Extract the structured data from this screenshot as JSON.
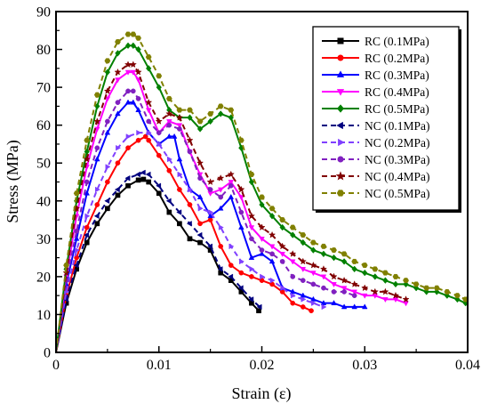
{
  "chart_data": {
    "type": "line",
    "xlabel": "Strain (ε)",
    "ylabel": "Stress (MPa)",
    "xlim": [
      0,
      0.04
    ],
    "ylim": [
      0,
      90
    ],
    "xticks": [
      "0",
      "0.01",
      "0.02",
      "0.03",
      "0.04"
    ],
    "yticks": [
      "0",
      "10",
      "20",
      "30",
      "40",
      "50",
      "60",
      "70",
      "80",
      "90"
    ],
    "grid": false,
    "legend_position": "top-right",
    "series": [
      {
        "name": "RC (0.1MPa)",
        "color": "#000000",
        "style": "solid",
        "marker": "square",
        "x": [
          0,
          0.001,
          0.002,
          0.003,
          0.004,
          0.005,
          0.006,
          0.007,
          0.008,
          0.0085,
          0.009,
          0.01,
          0.011,
          0.012,
          0.013,
          0.014,
          0.015,
          0.016,
          0.017,
          0.018,
          0.019,
          0.0197
        ],
        "y": [
          0,
          13,
          22,
          29,
          34,
          38,
          41.5,
          44,
          45.5,
          45.7,
          45,
          42,
          37,
          34,
          30,
          29,
          27,
          21,
          19,
          16,
          13,
          11
        ]
      },
      {
        "name": "RC (0.2MPa)",
        "color": "#ff0000",
        "style": "solid",
        "marker": "circle",
        "x": [
          0,
          0.001,
          0.002,
          0.003,
          0.004,
          0.005,
          0.006,
          0.007,
          0.008,
          0.0087,
          0.009,
          0.01,
          0.011,
          0.012,
          0.013,
          0.014,
          0.015,
          0.016,
          0.017,
          0.018,
          0.019,
          0.02,
          0.021,
          0.022,
          0.023,
          0.024,
          0.0248
        ],
        "y": [
          0,
          15,
          25,
          33,
          39,
          45,
          50,
          54,
          56,
          57,
          56,
          52,
          48,
          43,
          39,
          34,
          35,
          28,
          23,
          21,
          20,
          19,
          18,
          16,
          13,
          12,
          11
        ]
      },
      {
        "name": "RC (0.3MPa)",
        "color": "#0000ff",
        "style": "solid",
        "marker": "triangle-up",
        "x": [
          0,
          0.001,
          0.002,
          0.003,
          0.004,
          0.005,
          0.006,
          0.007,
          0.0075,
          0.008,
          0.009,
          0.01,
          0.011,
          0.0115,
          0.012,
          0.013,
          0.014,
          0.015,
          0.016,
          0.017,
          0.018,
          0.019,
          0.02,
          0.021,
          0.022,
          0.023,
          0.024,
          0.025,
          0.026,
          0.027,
          0.028,
          0.029,
          0.03
        ],
        "y": [
          0,
          18,
          30,
          42,
          51,
          58,
          63,
          66,
          66,
          64,
          58,
          55,
          57,
          57,
          51,
          43,
          41,
          36,
          38,
          41,
          33,
          25,
          26,
          24,
          17,
          16,
          15,
          14,
          13,
          13,
          12,
          12,
          12
        ]
      },
      {
        "name": "RC (0.4MPa)",
        "color": "#ff00ff",
        "style": "solid",
        "marker": "triangle-down",
        "x": [
          0,
          0.001,
          0.002,
          0.003,
          0.004,
          0.005,
          0.006,
          0.007,
          0.0075,
          0.008,
          0.009,
          0.01,
          0.011,
          0.012,
          0.013,
          0.014,
          0.015,
          0.016,
          0.017,
          0.018,
          0.019,
          0.02,
          0.021,
          0.022,
          0.023,
          0.024,
          0.025,
          0.026,
          0.027,
          0.028,
          0.029,
          0.03,
          0.031,
          0.032,
          0.033,
          0.034
        ],
        "y": [
          0,
          20,
          36,
          49,
          59,
          67,
          72,
          74,
          74,
          72,
          64,
          58,
          61,
          60,
          53,
          47,
          42,
          43,
          45,
          41,
          33,
          30,
          28,
          26,
          24,
          22,
          21,
          20,
          18,
          17,
          16,
          15,
          15,
          14,
          14,
          13
        ]
      },
      {
        "name": "RC (0.5MPa)",
        "color": "#008000",
        "style": "solid",
        "marker": "diamond",
        "x": [
          0,
          0.001,
          0.002,
          0.003,
          0.004,
          0.005,
          0.006,
          0.007,
          0.0075,
          0.008,
          0.009,
          0.01,
          0.011,
          0.012,
          0.013,
          0.014,
          0.015,
          0.016,
          0.017,
          0.018,
          0.019,
          0.02,
          0.021,
          0.022,
          0.023,
          0.024,
          0.025,
          0.026,
          0.027,
          0.028,
          0.029,
          0.03,
          0.031,
          0.032,
          0.033,
          0.034,
          0.035,
          0.036,
          0.037,
          0.038,
          0.039,
          0.0398
        ],
        "y": [
          0,
          22,
          40,
          53,
          65,
          74,
          79,
          81,
          81,
          80,
          75,
          70,
          64,
          62,
          62,
          59,
          61,
          63,
          62,
          54,
          45,
          39,
          36,
          33,
          31,
          29,
          27,
          26,
          25,
          24,
          22,
          21,
          20,
          19,
          18,
          18,
          17,
          16,
          16,
          15,
          14,
          13
        ]
      },
      {
        "name": "NC (0.1MPa)",
        "color": "#000080",
        "style": "dashed",
        "marker": "triangle-left",
        "x": [
          0,
          0.001,
          0.002,
          0.003,
          0.004,
          0.005,
          0.006,
          0.007,
          0.008,
          0.0085,
          0.009,
          0.01,
          0.011,
          0.012,
          0.013,
          0.014,
          0.015,
          0.016,
          0.017,
          0.018,
          0.019,
          0.0198
        ],
        "y": [
          0,
          14,
          23,
          31,
          36,
          40,
          43,
          46,
          47,
          47.5,
          47,
          44,
          40,
          37,
          34,
          31,
          28,
          22,
          20,
          17,
          14,
          12
        ]
      },
      {
        "name": "NC (0.2MPa)",
        "color": "#8040ff",
        "style": "dashed",
        "marker": "triangle-right",
        "x": [
          0,
          0.001,
          0.002,
          0.003,
          0.004,
          0.005,
          0.006,
          0.007,
          0.008,
          0.009,
          0.01,
          0.011,
          0.012,
          0.013,
          0.014,
          0.015,
          0.016,
          0.017,
          0.018,
          0.019,
          0.02,
          0.021,
          0.022,
          0.023,
          0.024,
          0.025,
          0.026
        ],
        "y": [
          0,
          16,
          27,
          36,
          43,
          49,
          54,
          57,
          58,
          58,
          55,
          51,
          47,
          43,
          38,
          37,
          33,
          28,
          24,
          22,
          20,
          19,
          17,
          15,
          14,
          13,
          12
        ]
      },
      {
        "name": "NC (0.3MPa)",
        "color": "#8020c0",
        "style": "dashed",
        "marker": "circle",
        "x": [
          0,
          0.001,
          0.002,
          0.003,
          0.004,
          0.005,
          0.006,
          0.007,
          0.0075,
          0.008,
          0.009,
          0.01,
          0.011,
          0.012,
          0.013,
          0.014,
          0.015,
          0.016,
          0.017,
          0.018,
          0.019,
          0.02,
          0.021,
          0.022,
          0.023,
          0.024,
          0.025,
          0.026,
          0.027,
          0.028,
          0.029
        ],
        "y": [
          0,
          19,
          32,
          45,
          54,
          61,
          66,
          69,
          69,
          67,
          61,
          58,
          60,
          59,
          53,
          46,
          43,
          41,
          44,
          37,
          30,
          27,
          26,
          24,
          20,
          19,
          18,
          17,
          16,
          16,
          15
        ]
      },
      {
        "name": "NC (0.4MPa)",
        "color": "#800000",
        "style": "dashed",
        "marker": "star",
        "x": [
          0,
          0.001,
          0.002,
          0.003,
          0.004,
          0.005,
          0.006,
          0.007,
          0.0075,
          0.008,
          0.009,
          0.01,
          0.011,
          0.012,
          0.013,
          0.014,
          0.015,
          0.016,
          0.017,
          0.018,
          0.019,
          0.02,
          0.021,
          0.022,
          0.023,
          0.024,
          0.025,
          0.026,
          0.027,
          0.028,
          0.029,
          0.03,
          0.031,
          0.032,
          0.033,
          0.034
        ],
        "y": [
          0,
          21,
          38,
          51,
          61,
          69,
          74,
          76,
          76,
          74,
          66,
          61,
          63,
          62,
          56,
          50,
          45,
          46,
          47,
          43,
          36,
          33,
          31,
          28,
          26,
          24,
          23,
          22,
          20,
          19,
          18,
          17,
          16,
          16,
          15,
          14
        ]
      },
      {
        "name": "NC (0.5MPa)",
        "color": "#808000",
        "style": "dashed",
        "marker": "hexagon",
        "x": [
          0,
          0.001,
          0.002,
          0.003,
          0.004,
          0.005,
          0.006,
          0.007,
          0.0075,
          0.008,
          0.009,
          0.01,
          0.011,
          0.012,
          0.013,
          0.014,
          0.015,
          0.016,
          0.017,
          0.018,
          0.019,
          0.02,
          0.021,
          0.022,
          0.023,
          0.024,
          0.025,
          0.026,
          0.027,
          0.028,
          0.029,
          0.03,
          0.031,
          0.032,
          0.033,
          0.034,
          0.035,
          0.036,
          0.037,
          0.038,
          0.039,
          0.0398
        ],
        "y": [
          0,
          23,
          42,
          56,
          68,
          77,
          82,
          84,
          84,
          83,
          78,
          73,
          67,
          64,
          64,
          61,
          63,
          65,
          64,
          56,
          47,
          41,
          38,
          35,
          33,
          31,
          29,
          28,
          27,
          26,
          24,
          23,
          22,
          21,
          20,
          19,
          18,
          17,
          17,
          16,
          15,
          14
        ]
      }
    ]
  }
}
